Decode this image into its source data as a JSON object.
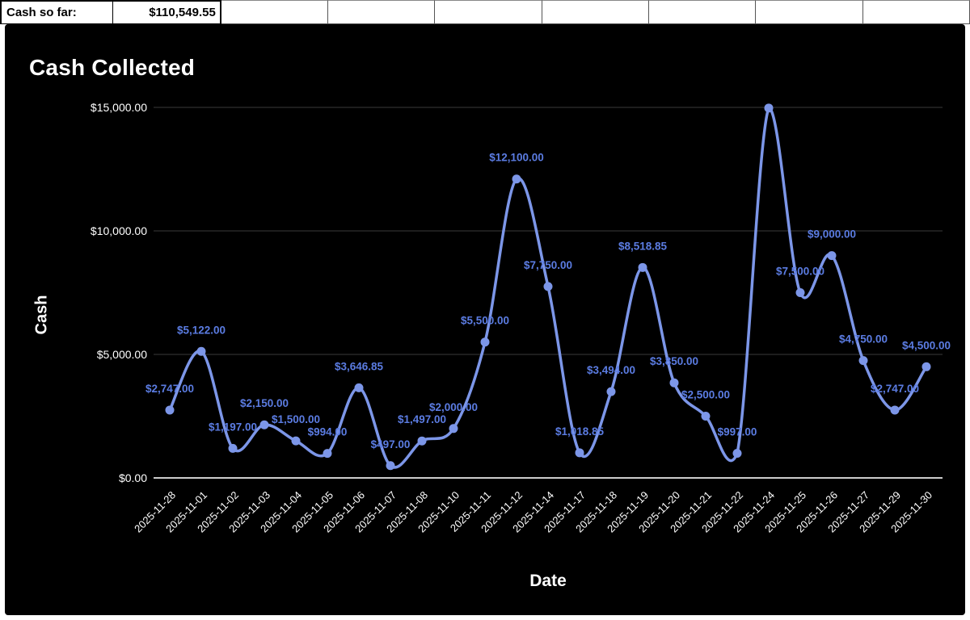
{
  "header": {
    "label_cell": "Cash so far:",
    "value_cell": "$110,549.55"
  },
  "chart_data": {
    "type": "line",
    "title": "Cash Collected",
    "xlabel": "Date",
    "ylabel": "Cash",
    "ylim": [
      0,
      15000
    ],
    "grid": true,
    "legend": "none",
    "smooth": true,
    "x": [
      "2025-11-28",
      "2025-11-01",
      "2025-11-02",
      "2025-11-03",
      "2025-11-04",
      "2025-11-05",
      "2025-11-06",
      "2025-11-07",
      "2025-11-08",
      "2025-11-10",
      "2025-11-11",
      "2025-11-12",
      "2025-11-14",
      "2025-11-17",
      "2025-11-18",
      "2025-11-19",
      "2025-11-20",
      "2025-11-21",
      "2025-11-22",
      "2025-11-24",
      "2025-11-25",
      "2025-11-26",
      "2025-11-27",
      "2025-11-29",
      "2025-11-30"
    ],
    "series": [
      {
        "name": "Cash",
        "values": [
          2747,
          5122,
          1197,
          2150,
          1500,
          994,
          3646.85,
          497,
          1497,
          2000,
          5500,
          12100,
          7750,
          1018.85,
          3494,
          8518.85,
          3850,
          2500,
          997,
          14973,
          7500,
          9000,
          4750,
          2747,
          4500
        ]
      }
    ],
    "point_labels": [
      "$2,747.00",
      "$5,122.00",
      "$1,197.00",
      "$2,150.00",
      "$1,500.00",
      "$994.00",
      "$3,646.85",
      "$497.00",
      "$1,497.00",
      "$2,000.00",
      "$5,500.00",
      "$12,100.00",
      "$7,750.00",
      "$1,018.85",
      "$3,494.00",
      "$8,518.85",
      "$3,850.00",
      "$2,500.00",
      "$997.00",
      null,
      "$7,500.00",
      "$9,000.00",
      "$4,750.00",
      "$2,747.00",
      "$4,500.00"
    ],
    "yticks": [
      {
        "value": 0,
        "label": "$0.00"
      },
      {
        "value": 5000,
        "label": "$5,000.00"
      },
      {
        "value": 10000,
        "label": "$10,000.00"
      },
      {
        "value": 15000,
        "label": "$15,000.00"
      }
    ],
    "colors": {
      "series": "#7c96e8",
      "point": "#7c96e8",
      "data_label": "#5b7ce2",
      "axis_text": "#ffffff",
      "grid_line": "#3a3a3a",
      "baseline": "#cccccc",
      "background": "#000000",
      "title_text": "#ffffff"
    }
  }
}
